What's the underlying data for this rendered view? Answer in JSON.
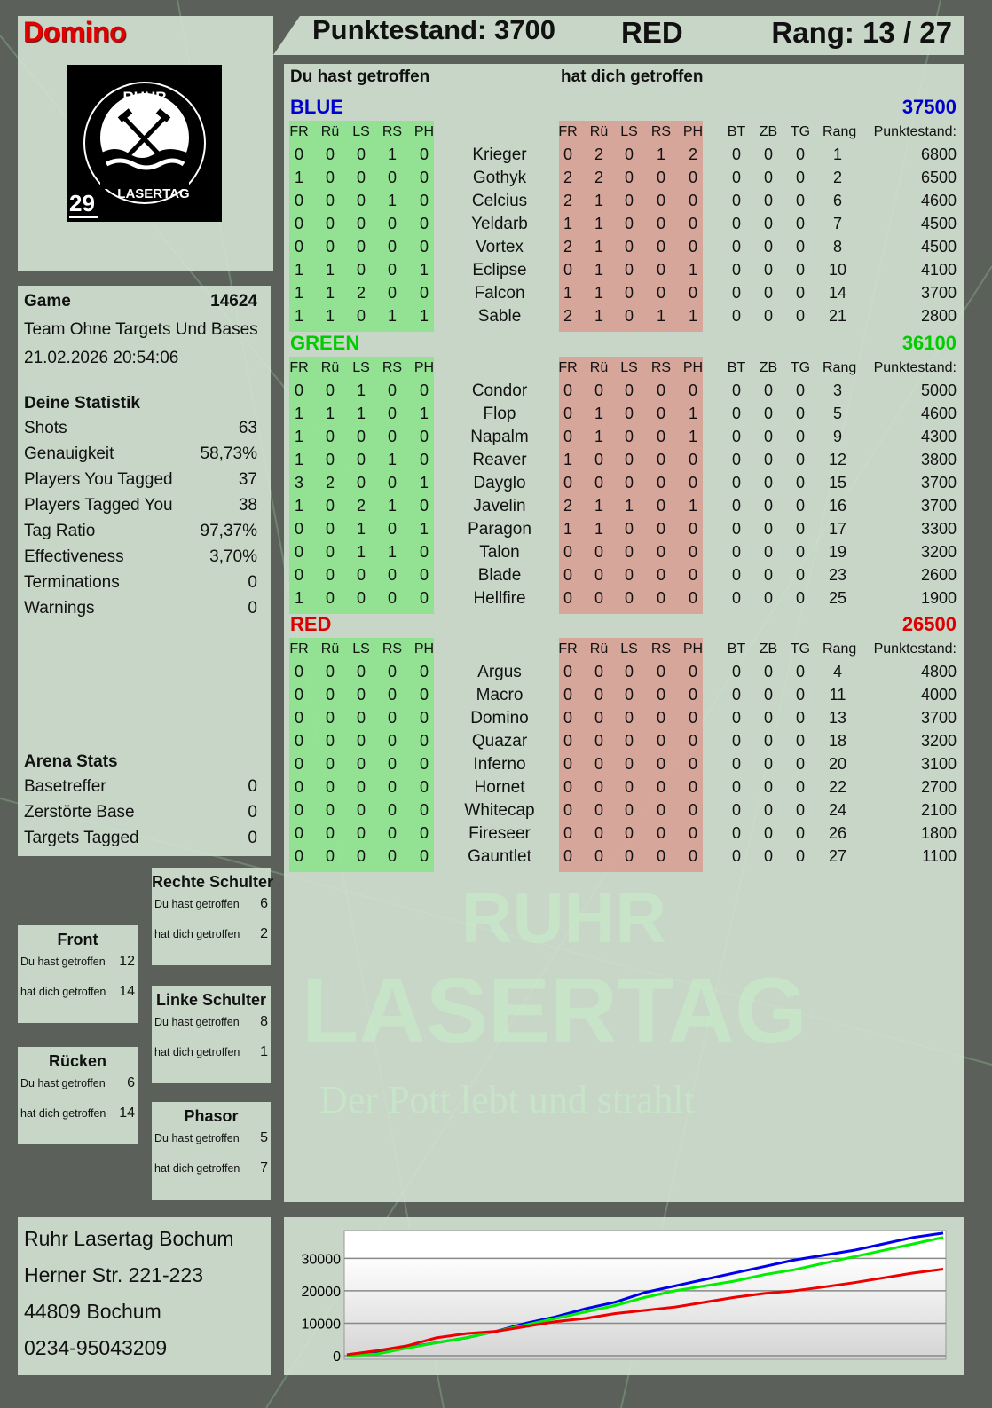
{
  "player": {
    "name": "Domino",
    "team": "RED",
    "score_label": "Punktestand: 3700",
    "rank_label": "Rang: 13 / 27",
    "logo_number": "29",
    "logo_text_top": "RUHR",
    "logo_text_bottom": "LASERTAG"
  },
  "columns": {
    "hit_you": "Du hast getroffen",
    "hit_by": "hat dich getroffen",
    "hit_cols": [
      "FR",
      "Rü",
      "LS",
      "RS",
      "PH"
    ],
    "extra_cols": [
      "BT",
      "ZB",
      "TG",
      "Rang",
      "Punktestand:"
    ]
  },
  "teams": [
    {
      "name": "BLUE",
      "total": "37500",
      "color": "#0000cc",
      "players": [
        [
          "Krieger",
          [
            0,
            0,
            0,
            1,
            0
          ],
          [
            0,
            2,
            0,
            1,
            2
          ],
          [
            0,
            0,
            0
          ],
          1,
          6800
        ],
        [
          "Gothyk",
          [
            1,
            0,
            0,
            0,
            0
          ],
          [
            2,
            2,
            0,
            0,
            0
          ],
          [
            0,
            0,
            0
          ],
          2,
          6500
        ],
        [
          "Celcius",
          [
            0,
            0,
            0,
            1,
            0
          ],
          [
            2,
            1,
            0,
            0,
            0
          ],
          [
            0,
            0,
            0
          ],
          6,
          4600
        ],
        [
          "Yeldarb",
          [
            0,
            0,
            0,
            0,
            0
          ],
          [
            1,
            1,
            0,
            0,
            0
          ],
          [
            0,
            0,
            0
          ],
          7,
          4500
        ],
        [
          "Vortex",
          [
            0,
            0,
            0,
            0,
            0
          ],
          [
            2,
            1,
            0,
            0,
            0
          ],
          [
            0,
            0,
            0
          ],
          8,
          4500
        ],
        [
          "Eclipse",
          [
            1,
            1,
            0,
            0,
            1
          ],
          [
            0,
            1,
            0,
            0,
            1
          ],
          [
            0,
            0,
            0
          ],
          10,
          4100
        ],
        [
          "Falcon",
          [
            1,
            1,
            2,
            0,
            0
          ],
          [
            1,
            1,
            0,
            0,
            0
          ],
          [
            0,
            0,
            0
          ],
          14,
          3700
        ],
        [
          "Sable",
          [
            1,
            1,
            0,
            1,
            1
          ],
          [
            2,
            1,
            0,
            1,
            1
          ],
          [
            0,
            0,
            0
          ],
          21,
          2800
        ]
      ]
    },
    {
      "name": "GREEN",
      "total": "36100",
      "color": "#00cc00",
      "players": [
        [
          "Condor",
          [
            0,
            0,
            1,
            0,
            0
          ],
          [
            0,
            0,
            0,
            0,
            0
          ],
          [
            0,
            0,
            0
          ],
          3,
          5000
        ],
        [
          "Flop",
          [
            1,
            1,
            1,
            0,
            1
          ],
          [
            0,
            1,
            0,
            0,
            1
          ],
          [
            0,
            0,
            0
          ],
          5,
          4600
        ],
        [
          "Napalm",
          [
            1,
            0,
            0,
            0,
            0
          ],
          [
            0,
            1,
            0,
            0,
            1
          ],
          [
            0,
            0,
            0
          ],
          9,
          4300
        ],
        [
          "Reaver",
          [
            1,
            0,
            0,
            1,
            0
          ],
          [
            1,
            0,
            0,
            0,
            0
          ],
          [
            0,
            0,
            0
          ],
          12,
          3800
        ],
        [
          "Dayglo",
          [
            3,
            2,
            0,
            0,
            1
          ],
          [
            0,
            0,
            0,
            0,
            0
          ],
          [
            0,
            0,
            0
          ],
          15,
          3700
        ],
        [
          "Javelin",
          [
            1,
            0,
            2,
            1,
            0
          ],
          [
            2,
            1,
            1,
            0,
            1
          ],
          [
            0,
            0,
            0
          ],
          16,
          3700
        ],
        [
          "Paragon",
          [
            0,
            0,
            1,
            0,
            1
          ],
          [
            1,
            1,
            0,
            0,
            0
          ],
          [
            0,
            0,
            0
          ],
          17,
          3300
        ],
        [
          "Talon",
          [
            0,
            0,
            1,
            1,
            0
          ],
          [
            0,
            0,
            0,
            0,
            0
          ],
          [
            0,
            0,
            0
          ],
          19,
          3200
        ],
        [
          "Blade",
          [
            0,
            0,
            0,
            0,
            0
          ],
          [
            0,
            0,
            0,
            0,
            0
          ],
          [
            0,
            0,
            0
          ],
          23,
          2600
        ],
        [
          "Hellfire",
          [
            1,
            0,
            0,
            0,
            0
          ],
          [
            0,
            0,
            0,
            0,
            0
          ],
          [
            0,
            0,
            0
          ],
          25,
          1900
        ]
      ]
    },
    {
      "name": "RED",
      "total": "26500",
      "color": "#dd0000",
      "players": [
        [
          "Argus",
          [
            0,
            0,
            0,
            0,
            0
          ],
          [
            0,
            0,
            0,
            0,
            0
          ],
          [
            0,
            0,
            0
          ],
          4,
          4800
        ],
        [
          "Macro",
          [
            0,
            0,
            0,
            0,
            0
          ],
          [
            0,
            0,
            0,
            0,
            0
          ],
          [
            0,
            0,
            0
          ],
          11,
          4000
        ],
        [
          "Domino",
          [
            0,
            0,
            0,
            0,
            0
          ],
          [
            0,
            0,
            0,
            0,
            0
          ],
          [
            0,
            0,
            0
          ],
          13,
          3700
        ],
        [
          "Quazar",
          [
            0,
            0,
            0,
            0,
            0
          ],
          [
            0,
            0,
            0,
            0,
            0
          ],
          [
            0,
            0,
            0
          ],
          18,
          3200
        ],
        [
          "Inferno",
          [
            0,
            0,
            0,
            0,
            0
          ],
          [
            0,
            0,
            0,
            0,
            0
          ],
          [
            0,
            0,
            0
          ],
          20,
          3100
        ],
        [
          "Hornet",
          [
            0,
            0,
            0,
            0,
            0
          ],
          [
            0,
            0,
            0,
            0,
            0
          ],
          [
            0,
            0,
            0
          ],
          22,
          2700
        ],
        [
          "Whitecap",
          [
            0,
            0,
            0,
            0,
            0
          ],
          [
            0,
            0,
            0,
            0,
            0
          ],
          [
            0,
            0,
            0
          ],
          24,
          2100
        ],
        [
          "Fireseer",
          [
            0,
            0,
            0,
            0,
            0
          ],
          [
            0,
            0,
            0,
            0,
            0
          ],
          [
            0,
            0,
            0
          ],
          26,
          1800
        ],
        [
          "Gauntlet",
          [
            0,
            0,
            0,
            0,
            0
          ],
          [
            0,
            0,
            0,
            0,
            0
          ],
          [
            0,
            0,
            0
          ],
          27,
          1100
        ]
      ]
    }
  ],
  "game": {
    "label": "Game",
    "id": "14624",
    "mode": "Team Ohne Targets Und Bases",
    "datetime": "21.02.2026 20:54:06"
  },
  "stats": {
    "title": "Deine Statistik",
    "items": [
      [
        "Shots",
        "63"
      ],
      [
        "Genauigkeit",
        "58,73%"
      ],
      [
        "Players You Tagged",
        "37"
      ],
      [
        "Players Tagged You",
        "38"
      ],
      [
        "Tag Ratio",
        "97,37%"
      ],
      [
        "Effectiveness",
        "3,70%"
      ],
      [
        "Terminations",
        "0"
      ],
      [
        "Warnings",
        "0"
      ]
    ]
  },
  "arena": {
    "title": "Arena Stats",
    "items": [
      [
        "Basetreffer",
        "0"
      ],
      [
        "Zerstörte Base",
        "0"
      ],
      [
        "Targets Tagged",
        "0"
      ]
    ]
  },
  "zones": [
    {
      "title": "Rechte Schulter",
      "hit_label": "Du hast getroffen",
      "hit": "6",
      "by_label": "hat dich getroffen",
      "by": "2"
    },
    {
      "title": "Front",
      "hit_label": "Du hast getroffen",
      "hit": "12",
      "by_label": "hat dich getroffen",
      "by": "14"
    },
    {
      "title": "Linke Schulter",
      "hit_label": "Du hast getroffen",
      "hit": "8",
      "by_label": "hat dich getroffen",
      "by": "1"
    },
    {
      "title": "Rücken",
      "hit_label": "Du hast getroffen",
      "hit": "6",
      "by_label": "hat dich getroffen",
      "by": "14"
    },
    {
      "title": "Phasor",
      "hit_label": "Du hast getroffen",
      "hit": "5",
      "by_label": "hat dich getroffen",
      "by": "7"
    }
  ],
  "address": [
    "Ruhr Lasertag Bochum",
    "Herner Str. 221-223",
    "44809 Bochum",
    "0234-95043209"
  ],
  "watermark": {
    "line1": "RUHR",
    "line2": "LASERTAG",
    "line3": "Der Pott lebt und strahlt"
  },
  "chart_data": {
    "type": "line",
    "ylim": [
      -1100,
      38600
    ],
    "yticks": [
      0,
      10000,
      20000,
      30000
    ],
    "grid": true,
    "legend": "none",
    "x": [
      0,
      1,
      2,
      3,
      4,
      5,
      6,
      7,
      8,
      9,
      10,
      11,
      12,
      13,
      14,
      15,
      16,
      17,
      18,
      19,
      20
    ],
    "series": [
      {
        "color": "#0000ee",
        "values": [
          0,
          1000,
          2500,
          4000,
          5500,
          7500,
          10000,
          12000,
          14500,
          16500,
          19500,
          21500,
          23500,
          25500,
          27500,
          29500,
          31000,
          32500,
          34500,
          36500,
          37800
        ]
      },
      {
        "color": "#00ee00",
        "values": [
          0,
          500,
          2300,
          4000,
          5500,
          7500,
          9500,
          11500,
          13500,
          15500,
          18000,
          20000,
          21500,
          23000,
          25000,
          26500,
          28500,
          30500,
          32500,
          34500,
          36500
        ]
      },
      {
        "color": "#ee0000",
        "values": [
          300,
          1500,
          3000,
          5500,
          6800,
          7500,
          9000,
          10500,
          11500,
          13000,
          14000,
          15000,
          16500,
          18000,
          19200,
          20000,
          21200,
          22500,
          24000,
          25500,
          26700
        ]
      }
    ]
  }
}
